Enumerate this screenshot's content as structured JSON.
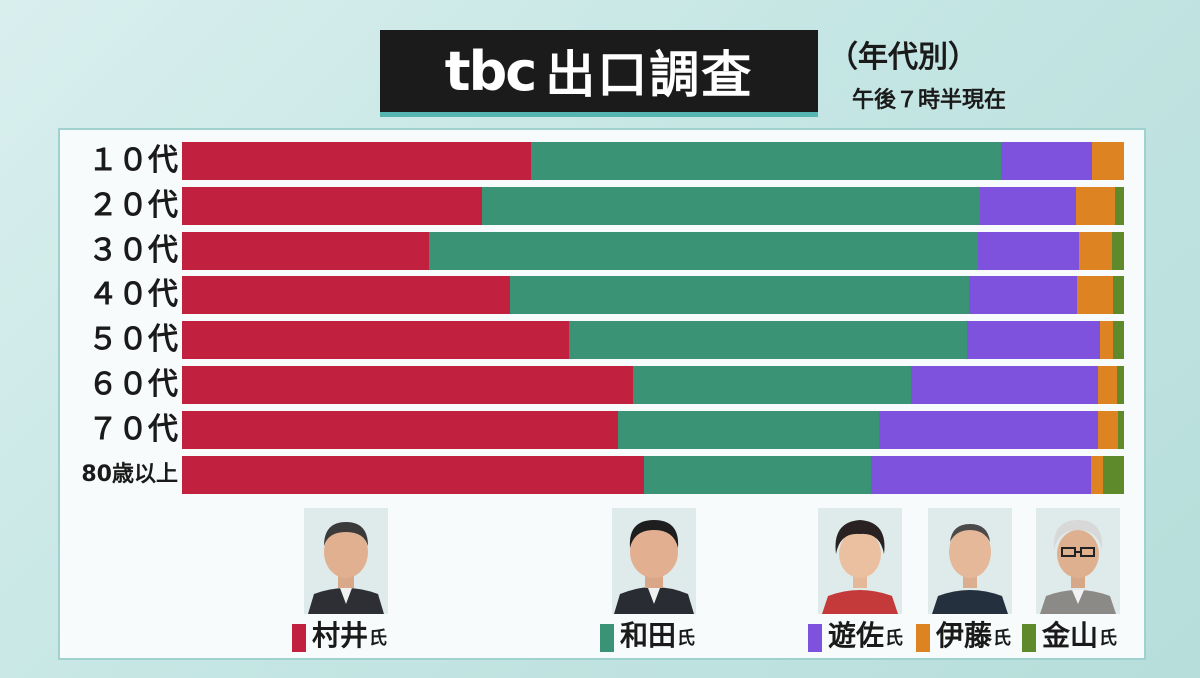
{
  "header": {
    "logo": "tbc",
    "title": "出口調査",
    "subtitle": "（年代別）",
    "timestamp": "午後７時半現在"
  },
  "chart_data": {
    "type": "bar",
    "stacked": true,
    "orientation": "horizontal",
    "categories": [
      "１０代",
      "２０代",
      "３０代",
      "４０代",
      "５０代",
      "６０代",
      "７０代",
      "80歳以上"
    ],
    "xlim": [
      0,
      100
    ],
    "series": [
      {
        "name": "村井氏",
        "color": "#c1213f",
        "values": [
          37.0,
          31.8,
          26.2,
          34.8,
          41.1,
          47.9,
          46.3,
          49.0
        ]
      },
      {
        "name": "和田氏",
        "color": "#3a9374",
        "values": [
          49.9,
          52.9,
          58.3,
          48.7,
          42.2,
          29.5,
          27.7,
          24.1
        ]
      },
      {
        "name": "遊佐氏",
        "color": "#7e52dd",
        "values": [
          9.7,
          10.2,
          10.7,
          11.5,
          14.2,
          19.8,
          23.2,
          23.4
        ]
      },
      {
        "name": "伊藤氏",
        "color": "#de8321",
        "values": [
          3.4,
          4.1,
          3.5,
          3.8,
          1.3,
          2.1,
          2.2,
          1.3
        ]
      },
      {
        "name": "金山氏",
        "color": "#5f8a2b",
        "values": [
          0.0,
          1.0,
          1.3,
          1.2,
          1.2,
          0.7,
          0.6,
          2.2
        ]
      }
    ]
  },
  "legend": [
    {
      "name": "村井",
      "suffix": "氏",
      "color": "#c1213f"
    },
    {
      "name": "和田",
      "suffix": "氏",
      "color": "#3a9374"
    },
    {
      "name": "遊佐",
      "suffix": "氏",
      "color": "#7e52dd"
    },
    {
      "name": "伊藤",
      "suffix": "氏",
      "color": "#de8321"
    },
    {
      "name": "金山",
      "suffix": "氏",
      "color": "#5f8a2b"
    }
  ]
}
